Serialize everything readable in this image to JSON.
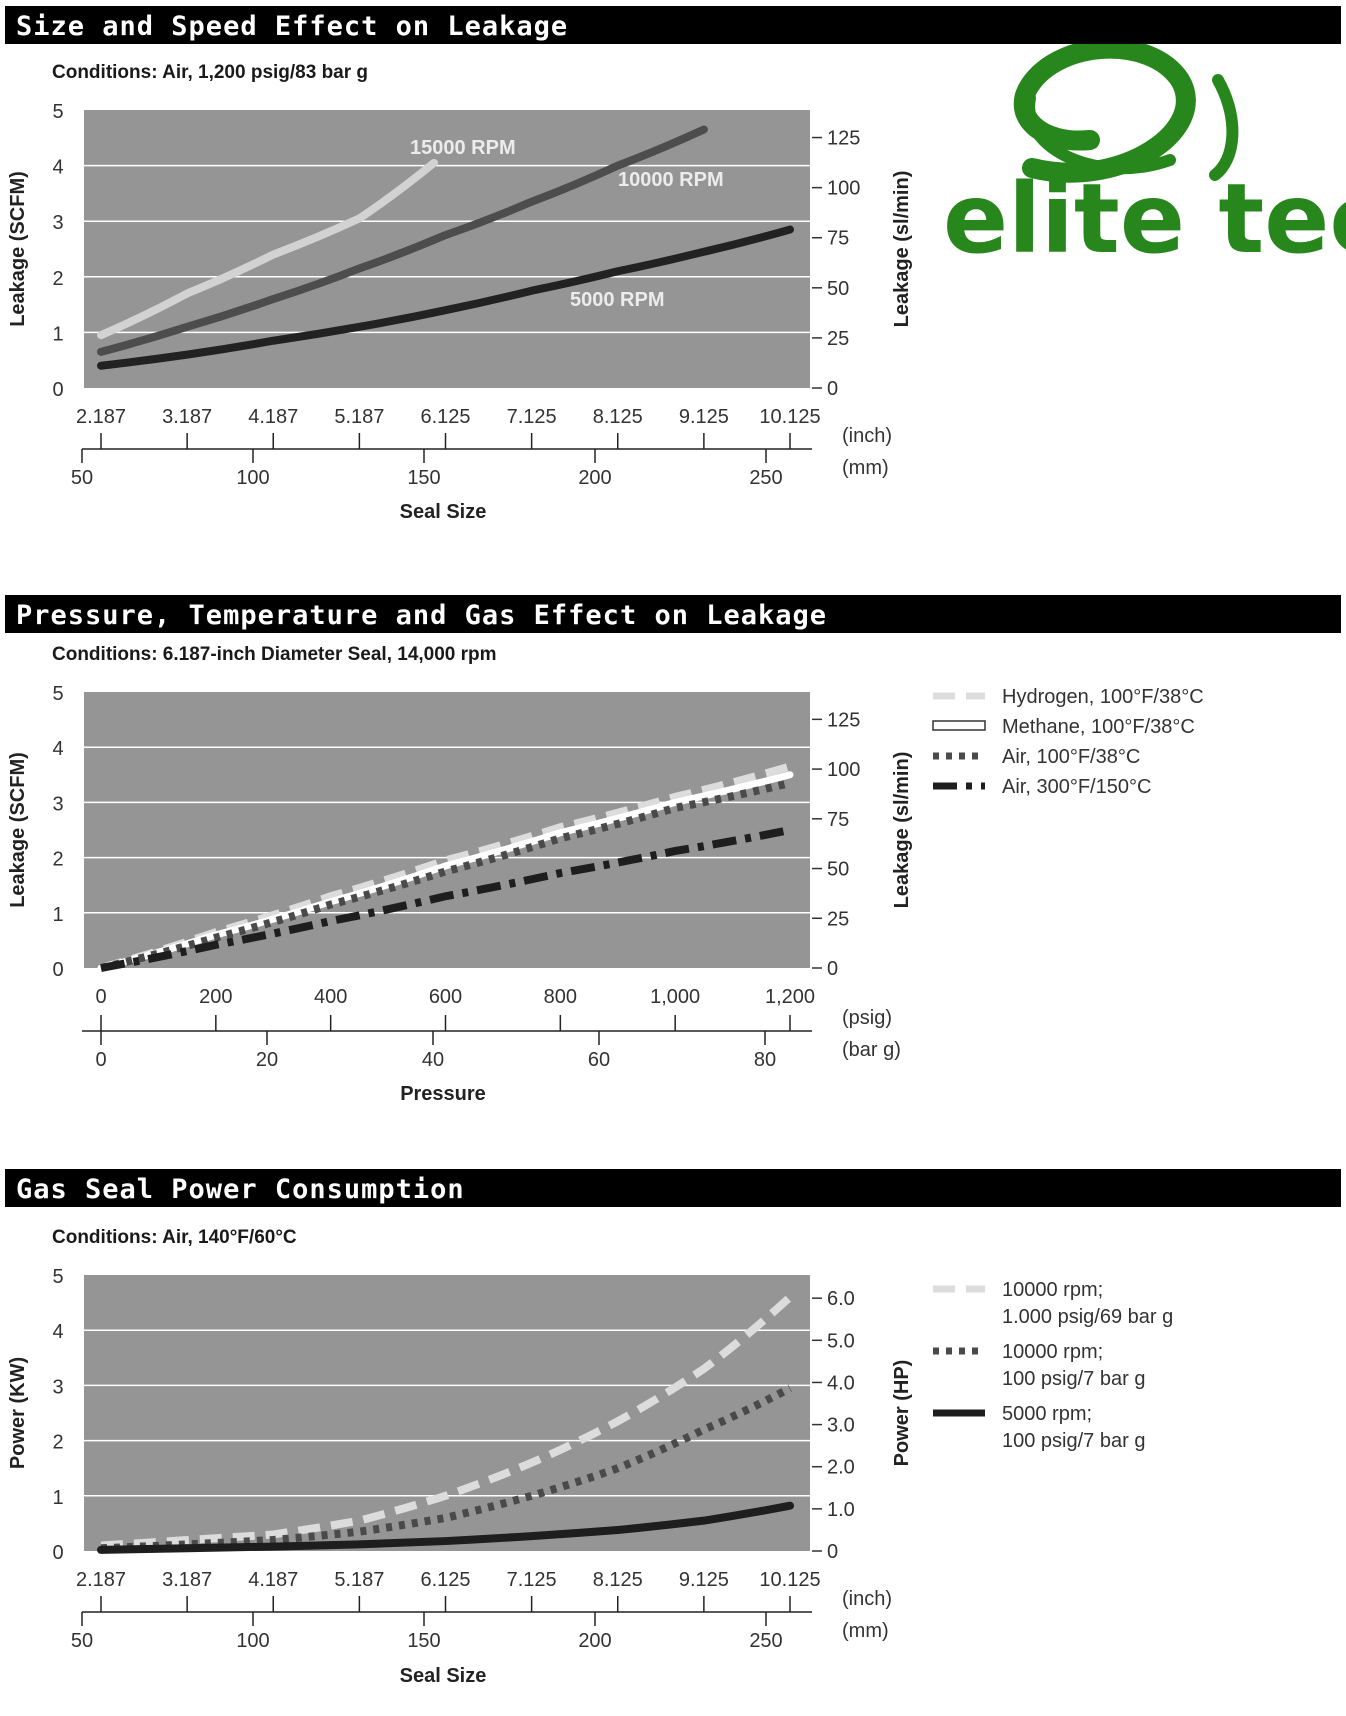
{
  "logo": {
    "text": "elite tech",
    "color": "#27871c",
    "icon": "swirl-e-icon"
  },
  "colors": {
    "header_bg": "#000000",
    "plot_bg": "#959595",
    "grid": "#ffffff"
  },
  "chart_data": [
    {
      "type": "line",
      "header": "Size and Speed Effect on Leakage",
      "title": "Conditions: Air, 1,200 psig/83 bar g",
      "xlabel": "Seal Size",
      "x_units": [
        "(inch)",
        "(mm)"
      ],
      "x_ticks_primary": [
        "2.187",
        "3.187",
        "4.187",
        "5.187",
        "6.125",
        "7.125",
        "8.125",
        "9.125",
        "10.125"
      ],
      "x_ticks_secondary": [
        "50",
        "100",
        "150",
        "200",
        "250"
      ],
      "ylabel": "Leakage (SCFM)",
      "ylabel_right": "Leakage (sl/min)",
      "ylim": [
        0,
        5
      ],
      "y_ticks": [
        "0",
        "1",
        "2",
        "3",
        "4",
        "5"
      ],
      "y_ticks_right": [
        "0",
        "25",
        "50",
        "75",
        "100",
        "125"
      ],
      "grid": true,
      "series": [
        {
          "name": "15000 RPM",
          "color": "#d2d2d2",
          "style": "solid",
          "x": [
            2.187,
            3.187,
            4.187,
            5.187,
            6.0
          ],
          "y": [
            0.95,
            1.7,
            2.4,
            3.05,
            4.05
          ]
        },
        {
          "name": "10000 RPM",
          "color": "#4d4d4d",
          "style": "solid",
          "x": [
            2.187,
            3.187,
            4.187,
            5.187,
            6.125,
            7.125,
            8.125,
            9.125
          ],
          "y": [
            0.65,
            1.1,
            1.6,
            2.15,
            2.75,
            3.35,
            4.0,
            4.65
          ]
        },
        {
          "name": "5000 RPM",
          "color": "#222222",
          "style": "solid",
          "x": [
            2.187,
            3.187,
            4.187,
            5.187,
            6.125,
            7.125,
            8.125,
            9.125,
            10.125
          ],
          "y": [
            0.4,
            0.6,
            0.85,
            1.1,
            1.4,
            1.75,
            2.1,
            2.45,
            2.85
          ]
        }
      ]
    },
    {
      "type": "line",
      "header": "Pressure, Temperature and Gas Effect on Leakage",
      "title": "Conditions: 6.187-inch Diameter Seal, 14,000 rpm",
      "xlabel": "Pressure",
      "x_units": [
        "(psig)",
        "(bar g)"
      ],
      "x_ticks_primary": [
        "0",
        "200",
        "400",
        "600",
        "800",
        "1,000",
        "1,200"
      ],
      "x_ticks_secondary": [
        "0",
        "20",
        "40",
        "60",
        "80"
      ],
      "ylabel": "Leakage (SCFM)",
      "ylabel_right": "Leakage (sl/min)",
      "ylim": [
        0,
        5
      ],
      "y_ticks": [
        "0",
        "1",
        "2",
        "3",
        "4",
        "5"
      ],
      "y_ticks_right": [
        "0",
        "25",
        "50",
        "75",
        "100",
        "125"
      ],
      "grid": true,
      "legend_position": "right",
      "series": [
        {
          "name": "Hydrogen, 100°F/38°C",
          "color": "#dcdcdc",
          "style": "dashed",
          "x": [
            0,
            200,
            400,
            600,
            800,
            1000,
            1200
          ],
          "y": [
            0.0,
            0.65,
            1.3,
            1.95,
            2.55,
            3.1,
            3.65
          ]
        },
        {
          "name": "Methane, 100°F/38°C",
          "color": "#ffffff",
          "style": "solid",
          "x": [
            0,
            200,
            400,
            600,
            800,
            1000,
            1200
          ],
          "y": [
            0.0,
            0.6,
            1.2,
            1.85,
            2.45,
            3.0,
            3.5
          ]
        },
        {
          "name": "Air, 100°F/38°C",
          "color": "#4a4a4a",
          "style": "dotted",
          "x": [
            0,
            200,
            400,
            600,
            800,
            1000,
            1200
          ],
          "y": [
            0.0,
            0.55,
            1.15,
            1.75,
            2.35,
            2.9,
            3.35
          ]
        },
        {
          "name": "Air, 300°F/150°C",
          "color": "#1e1e1e",
          "style": "dashdot",
          "x": [
            0,
            200,
            400,
            600,
            800,
            1000,
            1200
          ],
          "y": [
            0.0,
            0.42,
            0.85,
            1.3,
            1.72,
            2.12,
            2.5
          ]
        }
      ]
    },
    {
      "type": "line",
      "header": "Gas Seal Power Consumption",
      "title": "Conditions: Air, 140°F/60°C",
      "xlabel": "Seal Size",
      "x_units": [
        "(inch)",
        "(mm)"
      ],
      "x_ticks_primary": [
        "2.187",
        "3.187",
        "4.187",
        "5.187",
        "6.125",
        "7.125",
        "8.125",
        "9.125",
        "10.125"
      ],
      "x_ticks_secondary": [
        "50",
        "100",
        "150",
        "200",
        "250"
      ],
      "ylabel": "Power (KW)",
      "ylabel_right": "Power (HP)",
      "ylim": [
        0,
        5
      ],
      "y_ticks": [
        "0",
        "1",
        "2",
        "3",
        "4",
        "5"
      ],
      "y_ticks_right": [
        "0",
        "1.0",
        "2.0",
        "3.0",
        "4.0",
        "5.0",
        "6.0"
      ],
      "grid": true,
      "legend_position": "right",
      "series": [
        {
          "name": "10000 rpm; 1.000 psig/69 bar g",
          "color": "#dcdcdc",
          "style": "dashed",
          "x": [
            2.187,
            3.187,
            4.187,
            5.187,
            6.125,
            7.125,
            8.125,
            9.125,
            10.125
          ],
          "y": [
            0.1,
            0.2,
            0.3,
            0.55,
            1.0,
            1.6,
            2.35,
            3.3,
            4.6
          ]
        },
        {
          "name": "10000 rpm; 100 psig/7 bar g",
          "color": "#4a4a4a",
          "style": "dotted",
          "x": [
            2.187,
            3.187,
            4.187,
            5.187,
            6.125,
            7.125,
            8.125,
            9.125,
            10.125
          ],
          "y": [
            0.05,
            0.12,
            0.2,
            0.35,
            0.6,
            1.0,
            1.5,
            2.2,
            2.95
          ]
        },
        {
          "name": "5000 rpm; 100 psig/7 bar g",
          "color": "#1e1e1e",
          "style": "solid",
          "x": [
            2.187,
            3.187,
            4.187,
            5.187,
            6.125,
            7.125,
            8.125,
            9.125,
            10.125
          ],
          "y": [
            0.02,
            0.05,
            0.08,
            0.12,
            0.18,
            0.27,
            0.38,
            0.55,
            0.82
          ]
        }
      ],
      "legend_lines": [
        [
          "10000 rpm;",
          "1.000 psig/69 bar g"
        ],
        [
          "10000 rpm;",
          "100 psig/7 bar g"
        ],
        [
          "5000 rpm;",
          "100 psig/7 bar g"
        ]
      ]
    }
  ]
}
